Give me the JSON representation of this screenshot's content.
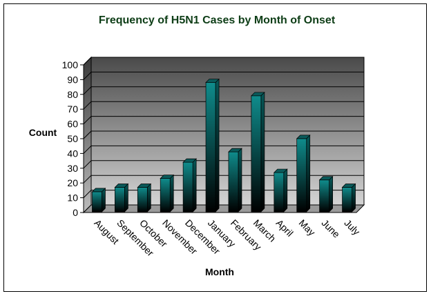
{
  "chart_data": {
    "type": "bar",
    "title": "Frequency of H5N1 Cases by Month of Onset",
    "xlabel": "Month",
    "ylabel": "Count",
    "categories": [
      "August",
      "September",
      "October",
      "November",
      "December",
      "January",
      "February",
      "March",
      "April",
      "May",
      "June",
      "July"
    ],
    "values": [
      15,
      18,
      18,
      24,
      35,
      89,
      42,
      80,
      28,
      51,
      23,
      18
    ],
    "ylim": [
      0,
      100
    ],
    "yticks": [
      0,
      10,
      20,
      30,
      40,
      50,
      60,
      70,
      80,
      90,
      100
    ],
    "grid": true,
    "legend": "none",
    "bar_style": "3d-cylinder",
    "colors": {
      "bar_top": "#0f8c8c",
      "bar_bottom": "#000000",
      "bar_cap": "#0a5a5a",
      "plot_bg_top": "#4a4a4a",
      "plot_bg_bottom": "#d4d4d4",
      "title": "#0d3d16"
    }
  }
}
